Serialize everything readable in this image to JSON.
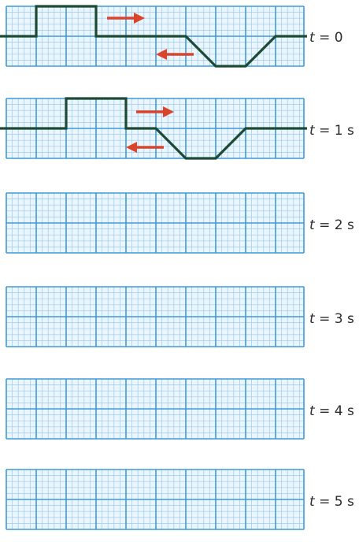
{
  "panels": [
    {
      "t_var": "t",
      "t_value": "= 0"
    },
    {
      "t_var": "t",
      "t_value": "= 1 s"
    },
    {
      "t_var": "t",
      "t_value": "= 2 s"
    },
    {
      "t_var": "t",
      "t_value": "= 3 s"
    },
    {
      "t_var": "t",
      "t_value": "= 4 s"
    },
    {
      "t_var": "t",
      "t_value": "= 5 s"
    }
  ],
  "pulses": {
    "right_moving": {
      "shape": "square-pulse",
      "height": 1,
      "width": 2,
      "direction": "right"
    },
    "left_moving": {
      "shape": "inverted-trapezoid",
      "depth": 1,
      "direction": "left"
    },
    "panel_1": [
      [
        0,
        0
      ],
      [
        1,
        0
      ],
      [
        1,
        1
      ],
      [
        3,
        1
      ],
      [
        3,
        0
      ],
      [
        6,
        0
      ],
      [
        7,
        -1
      ],
      [
        8,
        -1
      ],
      [
        9,
        0
      ],
      [
        10,
        0
      ]
    ],
    "panel_2": [
      [
        0,
        0
      ],
      [
        2,
        0
      ],
      [
        2,
        1
      ],
      [
        4,
        1
      ],
      [
        4,
        0
      ],
      [
        5,
        0
      ],
      [
        6,
        -1
      ],
      [
        7,
        -1
      ],
      [
        8,
        0
      ],
      [
        10,
        0
      ]
    ]
  },
  "colors": {
    "grid_major": "#3f9ad9",
    "grid_minor": "#9ccbee",
    "grid_fill": "#eaf5fd",
    "wave": "#1d4a32",
    "arrow": "#d9442b",
    "label": "#2b2b2b"
  }
}
